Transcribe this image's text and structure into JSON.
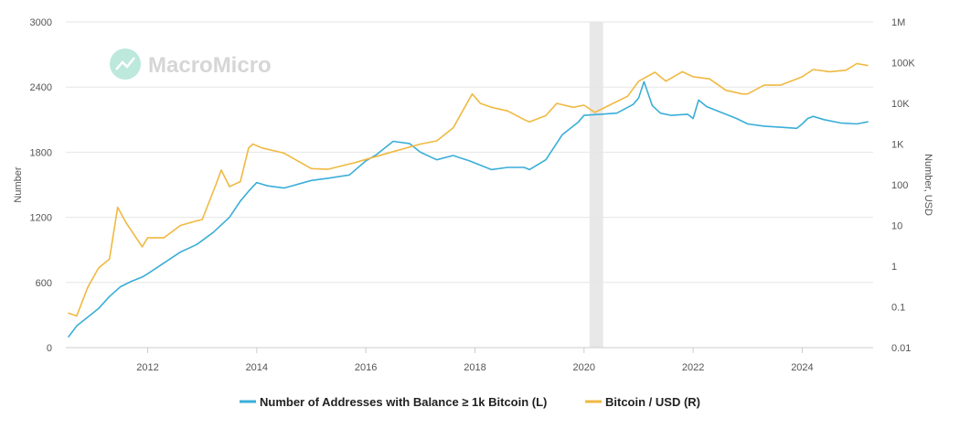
{
  "chart_data": {
    "type": "line",
    "title": "",
    "watermark": "MacroMicro",
    "x": {
      "range": [
        2010.5,
        2025.3
      ],
      "ticks": [
        2012,
        2014,
        2016,
        2018,
        2020,
        2022,
        2024
      ],
      "tick_labels": [
        "2012",
        "2014",
        "2016",
        "2018",
        "2020",
        "2022",
        "2024"
      ]
    },
    "y_left": {
      "label": "Number",
      "range": [
        0,
        3000
      ],
      "ticks": [
        0,
        600,
        1200,
        1800,
        2400,
        3000
      ],
      "tick_labels": [
        "0",
        "600",
        "1200",
        "1800",
        "2400",
        "3000"
      ]
    },
    "y_right": {
      "label": "Number, USD",
      "scale": "log",
      "range": [
        0.01,
        1000000
      ],
      "ticks": [
        0.01,
        0.1,
        1,
        10,
        100,
        1000,
        10000,
        100000,
        1000000
      ],
      "tick_labels": [
        "0.01",
        "0.1",
        "1",
        "10",
        "100",
        "1K",
        "10K",
        "100K",
        "1M"
      ]
    },
    "grid": true,
    "shaded_region": {
      "from": 2020.1,
      "to": 2020.35,
      "color": "#e8e8e8"
    },
    "legend": {
      "position": "bottom"
    },
    "series": [
      {
        "name": "Number of Addresses with Balance ≥ 1k Bitcoin (L)",
        "axis": "left",
        "color": "#3aaed8",
        "x": [
          2010.55,
          2010.7,
          2010.9,
          2011.1,
          2011.3,
          2011.5,
          2011.7,
          2011.9,
          2012.0,
          2012.3,
          2012.6,
          2012.9,
          2013.2,
          2013.5,
          2013.7,
          2013.85,
          2014.0,
          2014.2,
          2014.5,
          2015.0,
          2015.3,
          2015.7,
          2016.0,
          2016.2,
          2016.5,
          2016.8,
          2017.0,
          2017.3,
          2017.6,
          2017.9,
          2018.0,
          2018.3,
          2018.6,
          2018.9,
          2019.0,
          2019.3,
          2019.6,
          2019.9,
          2020.0,
          2020.3,
          2020.6,
          2020.9,
          2021.0,
          2021.1,
          2021.25,
          2021.4,
          2021.6,
          2021.9,
          2022.0,
          2022.1,
          2022.25,
          2022.5,
          2022.8,
          2023.0,
          2023.3,
          2023.6,
          2023.9,
          2024.0,
          2024.1,
          2024.2,
          2024.4,
          2024.7,
          2025.0,
          2025.2
        ],
        "values": [
          100,
          200,
          280,
          360,
          470,
          560,
          610,
          650,
          680,
          780,
          880,
          950,
          1060,
          1200,
          1350,
          1440,
          1520,
          1490,
          1470,
          1540,
          1560,
          1590,
          1720,
          1780,
          1900,
          1880,
          1800,
          1730,
          1770,
          1720,
          1700,
          1640,
          1660,
          1660,
          1640,
          1730,
          1960,
          2080,
          2140,
          2150,
          2160,
          2240,
          2300,
          2450,
          2230,
          2160,
          2140,
          2150,
          2110,
          2280,
          2220,
          2170,
          2110,
          2060,
          2040,
          2030,
          2020,
          2060,
          2110,
          2130,
          2100,
          2070,
          2060,
          2080
        ]
      },
      {
        "name": "Bitcoin / USD (R)",
        "axis": "right",
        "color": "#f0b941",
        "x": [
          2010.55,
          2010.7,
          2010.9,
          2011.1,
          2011.3,
          2011.45,
          2011.6,
          2011.9,
          2012.0,
          2012.3,
          2012.6,
          2012.9,
          2013.0,
          2013.25,
          2013.35,
          2013.5,
          2013.7,
          2013.85,
          2013.93,
          2014.1,
          2014.5,
          2015.0,
          2015.3,
          2015.8,
          2016.0,
          2016.5,
          2017.0,
          2017.3,
          2017.6,
          2017.95,
          2018.1,
          2018.3,
          2018.6,
          2018.9,
          2019.0,
          2019.3,
          2019.5,
          2019.8,
          2020.0,
          2020.2,
          2020.5,
          2020.8,
          2021.0,
          2021.3,
          2021.5,
          2021.8,
          2022.0,
          2022.3,
          2022.6,
          2022.9,
          2023.0,
          2023.3,
          2023.6,
          2023.9,
          2024.0,
          2024.2,
          2024.5,
          2024.8,
          2025.0,
          2025.2
        ],
        "values": [
          0.07,
          0.06,
          0.3,
          0.9,
          1.5,
          28,
          12,
          3,
          5,
          5,
          10,
          13,
          14,
          100,
          230,
          90,
          120,
          800,
          1000,
          800,
          600,
          250,
          240,
          350,
          420,
          650,
          1000,
          1200,
          2500,
          17000,
          10000,
          8000,
          6500,
          4000,
          3500,
          5000,
          10000,
          8000,
          9000,
          6000,
          9500,
          15000,
          35000,
          58000,
          35000,
          60000,
          45000,
          40000,
          21000,
          17000,
          17000,
          28000,
          28000,
          40000,
          45000,
          68000,
          60000,
          65000,
          95000,
          85000
        ]
      }
    ]
  },
  "legend": {
    "series_1_label": "Number of Addresses with Balance ≥ 1k Bitcoin (L)",
    "series_2_label": "Bitcoin / USD (R)"
  }
}
